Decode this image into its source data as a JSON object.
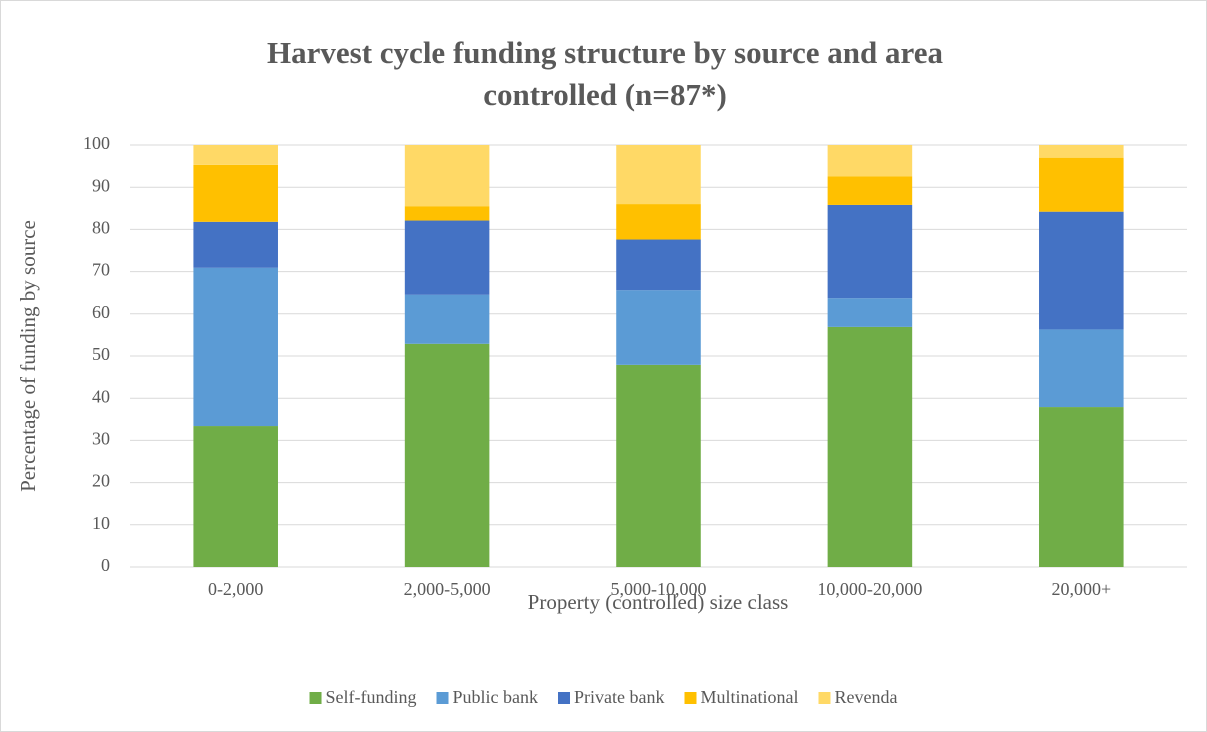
{
  "chart_data": {
    "type": "stacked_bar",
    "title": "Harvest cycle funding structure by source and area controlled (n=87*)",
    "x_label": "Property (controlled) size class",
    "y_label": "Percentage of funding by source",
    "categories": [
      "0-2,000",
      "2,000-5,000",
      "5,000-10,000",
      "10,000-20,000",
      "20,000+"
    ],
    "series": [
      {
        "name": "Self-funding",
        "color": "#70ad47",
        "values": [
          33.4,
          52.9,
          47.9,
          56.9,
          37.9
        ]
      },
      {
        "name": "Public bank",
        "color": "#5b9bd5",
        "values": [
          37.5,
          11.6,
          17.7,
          6.8,
          18.4
        ]
      },
      {
        "name": "Private bank",
        "color": "#4472c4",
        "values": [
          10.9,
          17.6,
          12.0,
          22.1,
          27.9
        ]
      },
      {
        "name": "Multinational",
        "color": "#ffc000",
        "values": [
          13.5,
          3.4,
          8.4,
          6.8,
          12.8
        ]
      },
      {
        "name": "Revenda",
        "color": "#ffd966",
        "values": [
          4.7,
          14.5,
          14.0,
          7.4,
          3.0
        ]
      }
    ],
    "ylim": [
      0,
      100
    ],
    "yticks": [
      0,
      10,
      20,
      30,
      40,
      50,
      60,
      70,
      80,
      90,
      100
    ],
    "grid": true,
    "legend": "bottom"
  }
}
